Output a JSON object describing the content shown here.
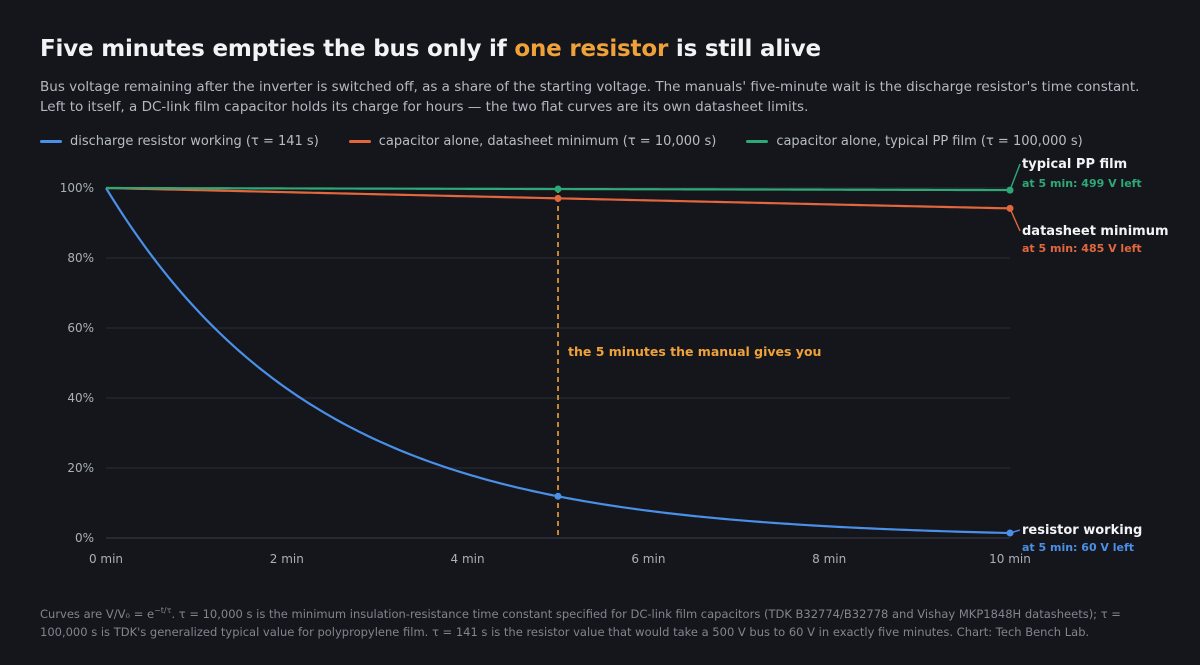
{
  "header": {
    "title_pre": "Five minutes empties the bus only if ",
    "title_highlight": "one resistor",
    "title_post": " is still alive",
    "subtitle": "Bus voltage remaining after the inverter is switched off, as a share of the starting voltage. The manuals' five-minute wait is the discharge resistor's time constant. Left to itself, a DC-link film capacitor holds its charge for hours — the two flat curves are its own datasheet limits."
  },
  "colors": {
    "background": "#14161b",
    "resistor": "#4a8fe8",
    "datasheet": "#e2673d",
    "typical": "#2fa877",
    "marker": "#f0a23a",
    "grid": "#2a2e36",
    "axis_text": "#aab0b8"
  },
  "chart_data": {
    "type": "line",
    "x_unit": "min",
    "xlim": [
      0,
      10
    ],
    "ylim": [
      0,
      100
    ],
    "x_ticks": [
      0,
      2,
      4,
      6,
      8,
      10
    ],
    "x_tick_labels": [
      "0 min",
      "2 min",
      "4 min",
      "6 min",
      "8 min",
      "10 min"
    ],
    "y_ticks": [
      0,
      20,
      40,
      60,
      80,
      100
    ],
    "y_tick_labels": [
      "0%",
      "20%",
      "40%",
      "60%",
      "80%",
      "100%"
    ],
    "grid": "horizontal",
    "legend_position": "top-left",
    "formula": "V/V0 = exp(-t/tau)",
    "series": [
      {
        "name": "discharge resistor working (τ = 141 s)",
        "tau_s": 141,
        "color": "#4a8fe8",
        "end_label": "resistor working",
        "end_sub": "at 5 min: 60 V left",
        "value_at_5min": 11.9
      },
      {
        "name": "capacitor alone, datasheet minimum (τ = 10,000 s)",
        "tau_s": 10000,
        "color": "#e2673d",
        "end_label": "datasheet minimum",
        "end_sub": "at 5 min: 485 V left",
        "value_at_5min": 97.0
      },
      {
        "name": "capacitor alone, typical PP film (τ = 100,000 s)",
        "tau_s": 100000,
        "color": "#2fa877",
        "end_label": "typical PP film",
        "end_sub": "at 5 min: 499 V left",
        "value_at_5min": 99.7
      }
    ],
    "annotation": {
      "x": 5,
      "text": "the 5 minutes the manual gives you"
    }
  },
  "footnote": {
    "pre": "Curves are V/V₀ = e",
    "sup": "−t/τ",
    "post": ". τ = 10,000 s is the minimum insulation-resistance time constant specified for DC-link film capacitors (TDK B32774/B32778 and Vishay MKP1848H datasheets); τ = 100,000 s is TDK's generalized typical value for polypropylene film. τ = 141 s is the resistor value that would take a 500 V bus to 60 V in exactly five minutes. Chart: Tech Bench Lab."
  }
}
